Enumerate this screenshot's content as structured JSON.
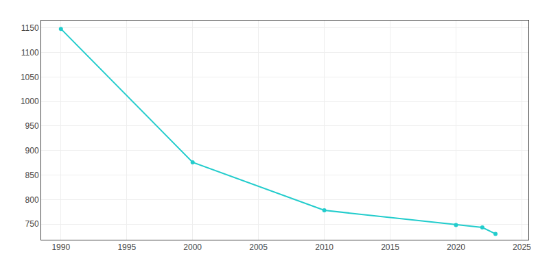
{
  "chart_data": {
    "type": "line",
    "x": [
      1990,
      2000,
      2010,
      2020,
      2022,
      2023
    ],
    "values": [
      1148,
      876,
      778,
      748,
      743,
      730
    ],
    "color": "#22cccc",
    "marker": "circle",
    "xlim": [
      1988.5,
      2025.5
    ],
    "xticks": [
      1990,
      1995,
      2000,
      2005,
      2010,
      2015,
      2020,
      2025
    ],
    "ylim": [
      718,
      1165
    ],
    "yticks": [
      750,
      800,
      850,
      900,
      950,
      1000,
      1050,
      1100,
      1150
    ],
    "grid": true
  }
}
